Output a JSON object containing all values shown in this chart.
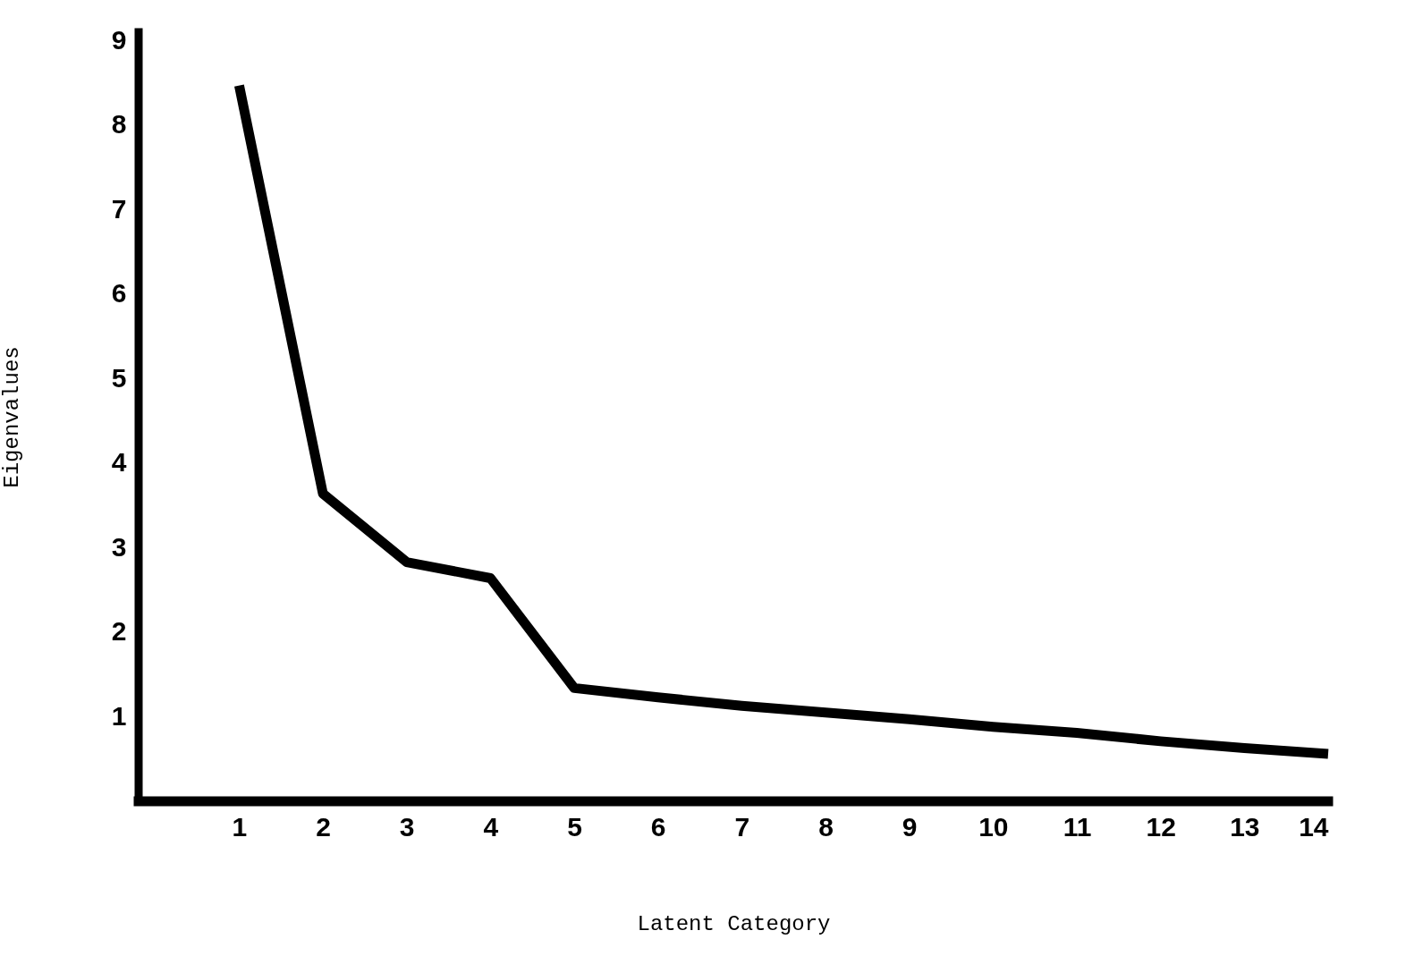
{
  "chart_data": {
    "type": "line",
    "xlabel": "Latent Category",
    "ylabel": "Eigenvalues",
    "x": [
      1,
      2,
      3,
      4,
      5,
      6,
      7,
      8,
      9,
      10,
      11,
      12,
      13,
      14
    ],
    "series": [
      {
        "color": "#000000",
        "values": [
          8.47,
          3.64,
          2.83,
          2.64,
          1.34,
          1.23,
          1.13,
          1.05,
          0.97,
          0.88,
          0.81,
          0.71,
          0.63,
          0.56
        ]
      }
    ],
    "xlim": [
      -0.2,
      14
    ],
    "ylim": [
      0,
      9.1
    ],
    "xticks": [
      1,
      2,
      3,
      4,
      5,
      6,
      7,
      8,
      9,
      10,
      11,
      12,
      13,
      14
    ],
    "yticks": [
      1,
      2,
      3,
      4,
      5,
      6,
      7,
      8,
      9
    ],
    "grid": false,
    "marker": "none",
    "line_style": "solid"
  }
}
